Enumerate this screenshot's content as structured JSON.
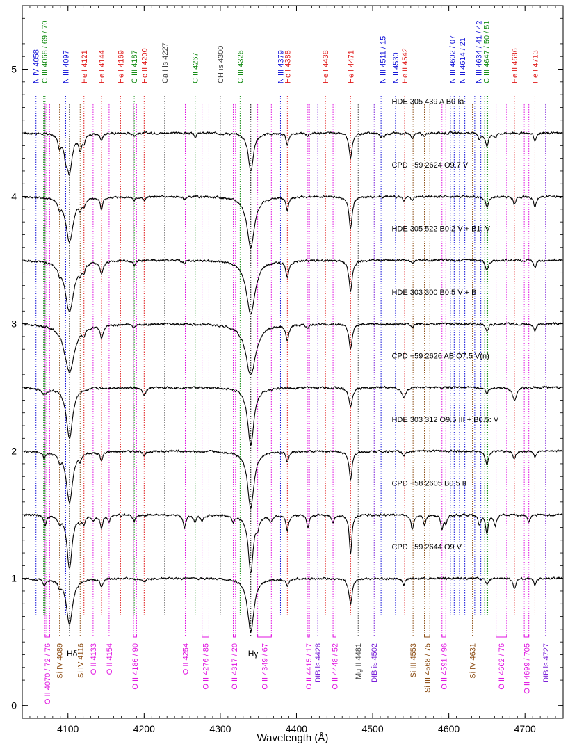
{
  "chart_data": {
    "type": "line",
    "xlabel": "Wavelength (Å)",
    "ylabel": "",
    "xlim": [
      4040,
      4750
    ],
    "ylim": [
      -0.1,
      5.5
    ],
    "x_ticks": [
      4100,
      4200,
      4300,
      4400,
      4500,
      4600,
      4700
    ],
    "y_ticks": [
      0,
      1,
      2,
      3,
      4,
      5
    ],
    "colors": {
      "N": "#1010d8",
      "He": "#e01818",
      "C": "#108a10",
      "gray": "#404040",
      "O": "#e010e0",
      "Si": "#8a4a10",
      "DIB": "#7a20d8",
      "black": "#000000"
    },
    "series": [
      {
        "name": "HDE 305 439 A    B0 Ia",
        "offset": 4.5,
        "label_x": 4525,
        "lines": [
          [
            4089,
            0.1,
            2.5
          ],
          [
            4097,
            0.12,
            2.5
          ],
          [
            4102,
            0.3,
            4
          ],
          [
            4116,
            0.12,
            2.5
          ],
          [
            4121,
            0.06,
            2
          ],
          [
            4144,
            0.05,
            2
          ],
          [
            4187,
            0.02,
            2
          ],
          [
            4267,
            0.03,
            2
          ],
          [
            4340,
            0.3,
            4
          ],
          [
            4388,
            0.1,
            2
          ],
          [
            4415,
            0.02,
            2
          ],
          [
            4471,
            0.2,
            2.5
          ],
          [
            4511,
            0.03,
            2
          ],
          [
            4515,
            0.02,
            2
          ],
          [
            4552,
            0.05,
            2
          ],
          [
            4568,
            0.03,
            2
          ],
          [
            4640,
            0.04,
            2
          ],
          [
            4650,
            0.1,
            2.5
          ],
          [
            4661,
            0.03,
            2
          ],
          [
            4713,
            0.06,
            2
          ]
        ]
      },
      {
        "name": "CPD −59 2624    O9.7 V",
        "offset": 4.0,
        "label_x": 4525,
        "lines": [
          [
            4089,
            0.06,
            2
          ],
          [
            4102,
            0.35,
            6
          ],
          [
            4116,
            0.06,
            2
          ],
          [
            4121,
            0.05,
            2
          ],
          [
            4144,
            0.1,
            2
          ],
          [
            4187,
            0.03,
            2
          ],
          [
            4200,
            0.03,
            2
          ],
          [
            4253,
            0.02,
            2
          ],
          [
            4340,
            0.4,
            6
          ],
          [
            4388,
            0.1,
            2
          ],
          [
            4471,
            0.25,
            2.5
          ],
          [
            4541,
            0.04,
            2
          ],
          [
            4552,
            0.03,
            2
          ],
          [
            4650,
            0.08,
            2.5
          ],
          [
            4686,
            0.06,
            2
          ],
          [
            4713,
            0.08,
            2
          ]
        ]
      },
      {
        "name": "HDE 305 522    B0.2 V + B1: V",
        "offset": 3.5,
        "label_x": 4525,
        "lines": [
          [
            4089,
            0.05,
            2
          ],
          [
            4102,
            0.4,
            7
          ],
          [
            4116,
            0.05,
            2
          ],
          [
            4121,
            0.05,
            2
          ],
          [
            4144,
            0.1,
            2.5
          ],
          [
            4187,
            0.03,
            2
          ],
          [
            4253,
            0.02,
            2
          ],
          [
            4340,
            0.42,
            7
          ],
          [
            4388,
            0.12,
            2.5
          ],
          [
            4471,
            0.25,
            2.5
          ],
          [
            4552,
            0.03,
            2
          ],
          [
            4650,
            0.08,
            2.5
          ],
          [
            4713,
            0.06,
            2
          ]
        ]
      },
      {
        "name": "HDE 303 300    B0.5 V + B",
        "offset": 3.0,
        "label_x": 4525,
        "lines": [
          [
            4102,
            0.38,
            8
          ],
          [
            4121,
            0.05,
            2
          ],
          [
            4144,
            0.1,
            2.5
          ],
          [
            4187,
            0.03,
            2
          ],
          [
            4340,
            0.4,
            8
          ],
          [
            4388,
            0.12,
            2.5
          ],
          [
            4415,
            0.03,
            2
          ],
          [
            4471,
            0.2,
            2.5
          ],
          [
            4552,
            0.03,
            2
          ],
          [
            4650,
            0.06,
            2
          ],
          [
            4713,
            0.06,
            2
          ]
        ]
      },
      {
        "name": "CPD −59 2626 AB    O7.5 V(n)",
        "offset": 2.5,
        "label_x": 4525,
        "lines": [
          [
            4069,
            0.05,
            4
          ],
          [
            4102,
            0.4,
            5
          ],
          [
            4200,
            0.06,
            3
          ],
          [
            4340,
            0.45,
            5
          ],
          [
            4471,
            0.14,
            3
          ],
          [
            4541,
            0.08,
            3
          ],
          [
            4650,
            0.04,
            3
          ],
          [
            4686,
            0.1,
            3
          ]
        ]
      },
      {
        "name": "HDE 303 312    O9.5 III + B0.5: V",
        "offset": 2.0,
        "label_x": 4525,
        "lines": [
          [
            4069,
            0.05,
            2
          ],
          [
            4089,
            0.05,
            2
          ],
          [
            4102,
            0.4,
            5
          ],
          [
            4116,
            0.04,
            2
          ],
          [
            4144,
            0.08,
            2
          ],
          [
            4200,
            0.04,
            2
          ],
          [
            4340,
            0.45,
            5
          ],
          [
            4388,
            0.08,
            2
          ],
          [
            4471,
            0.22,
            2.5
          ],
          [
            4541,
            0.04,
            2
          ],
          [
            4650,
            0.1,
            2.5
          ],
          [
            4686,
            0.06,
            2
          ],
          [
            4713,
            0.05,
            2
          ]
        ]
      },
      {
        "name": "CPD −58 2605    B0.5 II",
        "offset": 1.5,
        "label_x": 4525,
        "lines": [
          [
            4070,
            0.08,
            2
          ],
          [
            4089,
            0.05,
            2
          ],
          [
            4102,
            0.42,
            4
          ],
          [
            4116,
            0.04,
            2
          ],
          [
            4121,
            0.05,
            2
          ],
          [
            4133,
            0.04,
            2
          ],
          [
            4144,
            0.1,
            2
          ],
          [
            4154,
            0.05,
            2
          ],
          [
            4187,
            0.05,
            2
          ],
          [
            4253,
            0.1,
            2
          ],
          [
            4267,
            0.06,
            2
          ],
          [
            4276,
            0.05,
            2
          ],
          [
            4317,
            0.05,
            2
          ],
          [
            4340,
            0.45,
            4
          ],
          [
            4349,
            0.06,
            2
          ],
          [
            4366,
            0.05,
            2
          ],
          [
            4388,
            0.12,
            2
          ],
          [
            4415,
            0.1,
            2
          ],
          [
            4448,
            0.06,
            2
          ],
          [
            4471,
            0.3,
            2
          ],
          [
            4552,
            0.12,
            2
          ],
          [
            4568,
            0.08,
            2
          ],
          [
            4591,
            0.1,
            2
          ],
          [
            4596,
            0.06,
            2
          ],
          [
            4640,
            0.08,
            2
          ],
          [
            4650,
            0.15,
            2
          ],
          [
            4661,
            0.08,
            2
          ],
          [
            4705,
            0.06,
            2
          ]
        ]
      },
      {
        "name": "CPD −59 2644    O9 V",
        "offset": 1.0,
        "label_x": 4525,
        "lines": [
          [
            4069,
            0.05,
            2
          ],
          [
            4089,
            0.04,
            2
          ],
          [
            4102,
            0.36,
            5
          ],
          [
            4144,
            0.06,
            2
          ],
          [
            4200,
            0.03,
            2
          ],
          [
            4340,
            0.42,
            5
          ],
          [
            4388,
            0.06,
            2
          ],
          [
            4471,
            0.2,
            2.5
          ],
          [
            4541,
            0.05,
            2
          ],
          [
            4650,
            0.05,
            2
          ],
          [
            4686,
            0.08,
            2
          ],
          [
            4713,
            0.05,
            2
          ]
        ]
      }
    ],
    "top_lines": [
      {
        "label": "N IV 4058",
        "x": [
          4058
        ],
        "color": "N"
      },
      {
        "label": "C III 4068 / 69 / 70",
        "x": [
          4068,
          4069,
          4070
        ],
        "color": "C"
      },
      {
        "label": "N III 4097",
        "x": [
          4097
        ],
        "color": "N"
      },
      {
        "label": "He I 4121",
        "x": [
          4121
        ],
        "color": "He"
      },
      {
        "label": "He I 4144",
        "x": [
          4144
        ],
        "color": "He"
      },
      {
        "label": "He I 4169",
        "x": [
          4169
        ],
        "color": "He"
      },
      {
        "label": "C III 4187",
        "x": [
          4187
        ],
        "color": "C"
      },
      {
        "label": "He II 4200",
        "x": [
          4200
        ],
        "color": "He"
      },
      {
        "label": "Ca I is 4227",
        "x": [
          4227
        ],
        "color": "gray"
      },
      {
        "label": "C II 4267",
        "x": [
          4267
        ],
        "color": "C"
      },
      {
        "label": "CH is 4300",
        "x": [
          4300
        ],
        "color": "gray"
      },
      {
        "label": "C III 4326",
        "x": [
          4326
        ],
        "color": "C"
      },
      {
        "label": "N III 4379",
        "x": [
          4379
        ],
        "color": "N"
      },
      {
        "label": "He I 4388",
        "x": [
          4388
        ],
        "color": "He"
      },
      {
        "label": "He I 4438",
        "x": [
          4438
        ],
        "color": "He"
      },
      {
        "label": "He I 4471",
        "x": [
          4471
        ],
        "color": "He"
      },
      {
        "label": "N III 4511 / 15",
        "x": [
          4511,
          4515
        ],
        "color": "N"
      },
      {
        "label": "N II 4530",
        "x": [
          4530
        ],
        "color": "N"
      },
      {
        "label": "He II 4542",
        "x": [
          4542
        ],
        "color": "He"
      },
      {
        "label": "N III 4602 / 07",
        "x": [
          4602,
          4607
        ],
        "color": "N"
      },
      {
        "label": "N II 4614 / 21",
        "x": [
          4614,
          4621
        ],
        "color": "N"
      },
      {
        "label": "N III 4634 / 41 / 42",
        "x": [
          4634,
          4641,
          4642
        ],
        "color": "N"
      },
      {
        "label": "C III 4647 / 50 / 51",
        "x": [
          4647,
          4650,
          4651
        ],
        "color": "C"
      },
      {
        "label": "He II 4686",
        "x": [
          4686
        ],
        "color": "He"
      },
      {
        "label": "He I 4713",
        "x": [
          4713
        ],
        "color": "He"
      }
    ],
    "bottom_lines": [
      {
        "label": "O II 4070 / 72 / 76",
        "x": [
          4070,
          4072,
          4076
        ],
        "color": "O"
      },
      {
        "label": "Si IV 4089",
        "x": [
          4089
        ],
        "color": "Si"
      },
      {
        "label": "Hδ",
        "x": [
          4102
        ],
        "color": "black"
      },
      {
        "label": "Si IV 4116",
        "x": [
          4116
        ],
        "color": "Si"
      },
      {
        "label": "O II 4133",
        "x": [
          4133
        ],
        "color": "O"
      },
      {
        "label": "O II 4154",
        "x": [
          4154
        ],
        "color": "O"
      },
      {
        "label": "O II 4186 / 90",
        "x": [
          4186,
          4190
        ],
        "color": "O"
      },
      {
        "label": "O II 4254",
        "x": [
          4254
        ],
        "color": "O"
      },
      {
        "label": "O II 4276 / 85",
        "x": [
          4276,
          4285
        ],
        "color": "O"
      },
      {
        "label": "O II 4317 / 20",
        "x": [
          4317,
          4320
        ],
        "color": "O"
      },
      {
        "label": "Hγ",
        "x": [
          4340
        ],
        "color": "black"
      },
      {
        "label": "O II 4349 / 67",
        "x": [
          4349,
          4367
        ],
        "color": "O"
      },
      {
        "label": "O II 4415 / 17",
        "x": [
          4415,
          4417
        ],
        "color": "O"
      },
      {
        "label": "DIB is 4428",
        "x": [
          4428
        ],
        "color": "DIB"
      },
      {
        "label": "O II 4448 / 52",
        "x": [
          4448,
          4452
        ],
        "color": "O"
      },
      {
        "label": "Mg II 4481",
        "x": [
          4481
        ],
        "color": "gray"
      },
      {
        "label": "DIB is 4502",
        "x": [
          4502
        ],
        "color": "DIB"
      },
      {
        "label": "Si III 4553",
        "x": [
          4553
        ],
        "color": "Si"
      },
      {
        "label": "Si III 4568 / 75",
        "x": [
          4568,
          4575
        ],
        "color": "Si"
      },
      {
        "label": "O II 4591 / 96",
        "x": [
          4591,
          4596
        ],
        "color": "O"
      },
      {
        "label": "Si IV 4631",
        "x": [
          4631
        ],
        "color": "Si"
      },
      {
        "label": "O II 4662 / 76",
        "x": [
          4662,
          4676
        ],
        "color": "O"
      },
      {
        "label": "O II 4699 / 705",
        "x": [
          4699,
          4705
        ],
        "color": "O"
      },
      {
        "label": "DIB is 4727",
        "x": [
          4727
        ],
        "color": "DIB"
      }
    ]
  }
}
